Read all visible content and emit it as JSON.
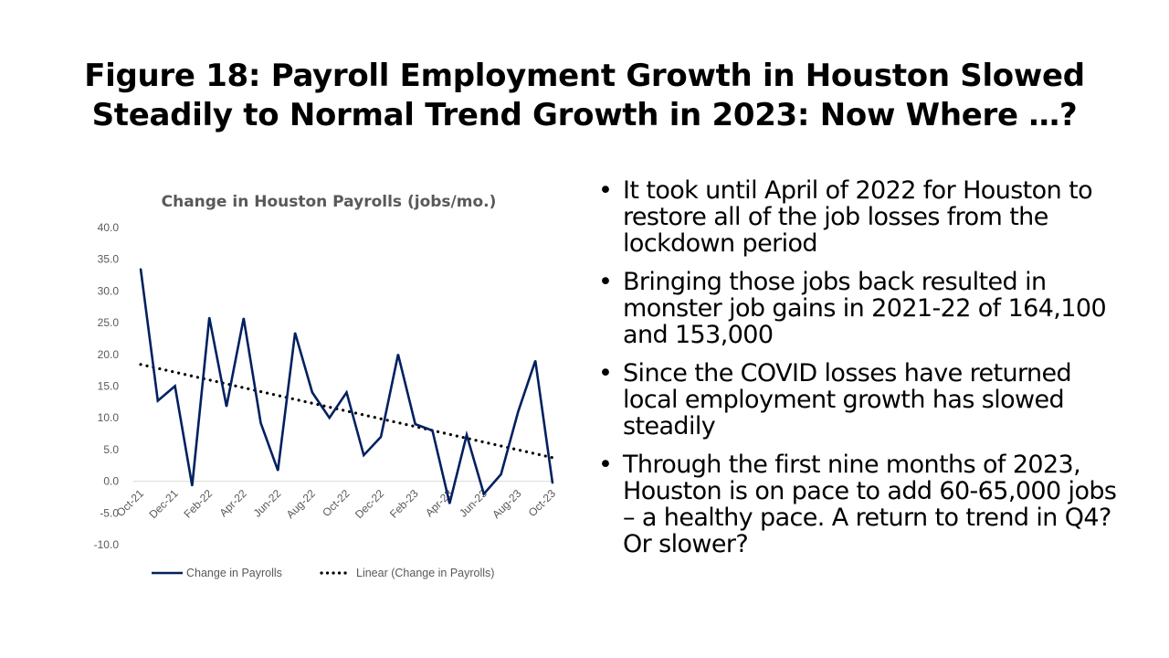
{
  "title": {
    "line1": "Figure 18: Payroll Employment Growth in Houston Slowed",
    "line2": "Steadily to Normal Trend Growth in 2023:  Now Where …?"
  },
  "bullets": [
    "It took until April of 2022 for Houston to restore all of the job losses from the lockdown period",
    "Bringing those jobs back resulted in monster job gains in 2021-22 of 164,100 and 153,000",
    "Since the COVID losses have returned local employment growth has slowed steadily",
    "Through the first nine months of 2023, Houston is on pace to add 60-65,000 jobs – a healthy pace.  A return to trend in Q4? Or slower?"
  ],
  "bullet_glyph": "•",
  "chart_data": {
    "type": "line",
    "title": "Change in Houston Payrolls (jobs/mo.)",
    "xlabel": "",
    "ylabel": "",
    "ylim": [
      -10,
      40
    ],
    "y_ticks": [
      "40.0",
      "35.0",
      "30.0",
      "25.0",
      "20.0",
      "15.0",
      "10.0",
      "5.0",
      "0.0",
      "-5.0",
      "-10.0"
    ],
    "x_tick_labels": [
      "Oct-21",
      "Dec-21",
      "Feb-22",
      "Apr-22",
      "Jun-22",
      "Aug-22",
      "Oct-22",
      "Dec-22",
      "Feb-23",
      "Apr-23",
      "Jun-23",
      "Aug-23",
      "Oct-23"
    ],
    "categories": [
      "Oct-21",
      "Nov-21",
      "Dec-21",
      "Jan-22",
      "Feb-22",
      "Mar-22",
      "Apr-22",
      "May-22",
      "Jun-22",
      "Jul-22",
      "Aug-22",
      "Sep-22",
      "Oct-22",
      "Nov-22",
      "Dec-22",
      "Jan-23",
      "Feb-23",
      "Mar-23",
      "Apr-23",
      "May-23",
      "Jun-23",
      "Jul-23",
      "Aug-23",
      "Sep-23",
      "Oct-23"
    ],
    "series": [
      {
        "name": "Change in Payrolls",
        "color": "#002060",
        "values": [
          33.5,
          12.7,
          15.0,
          -0.7,
          25.8,
          11.8,
          25.7,
          9.2,
          1.7,
          23.4,
          14.0,
          10.0,
          14.0,
          4.1,
          7.0,
          20.0,
          9.0,
          8.0,
          -3.5,
          7.3,
          -2.0,
          1.1,
          11.0,
          19.0,
          -0.3
        ]
      },
      {
        "name": "Linear (Change in Payrolls)",
        "color": "#000000",
        "style": "dotted",
        "trend": "linear"
      }
    ],
    "grid": false,
    "legend_position": "bottom"
  }
}
